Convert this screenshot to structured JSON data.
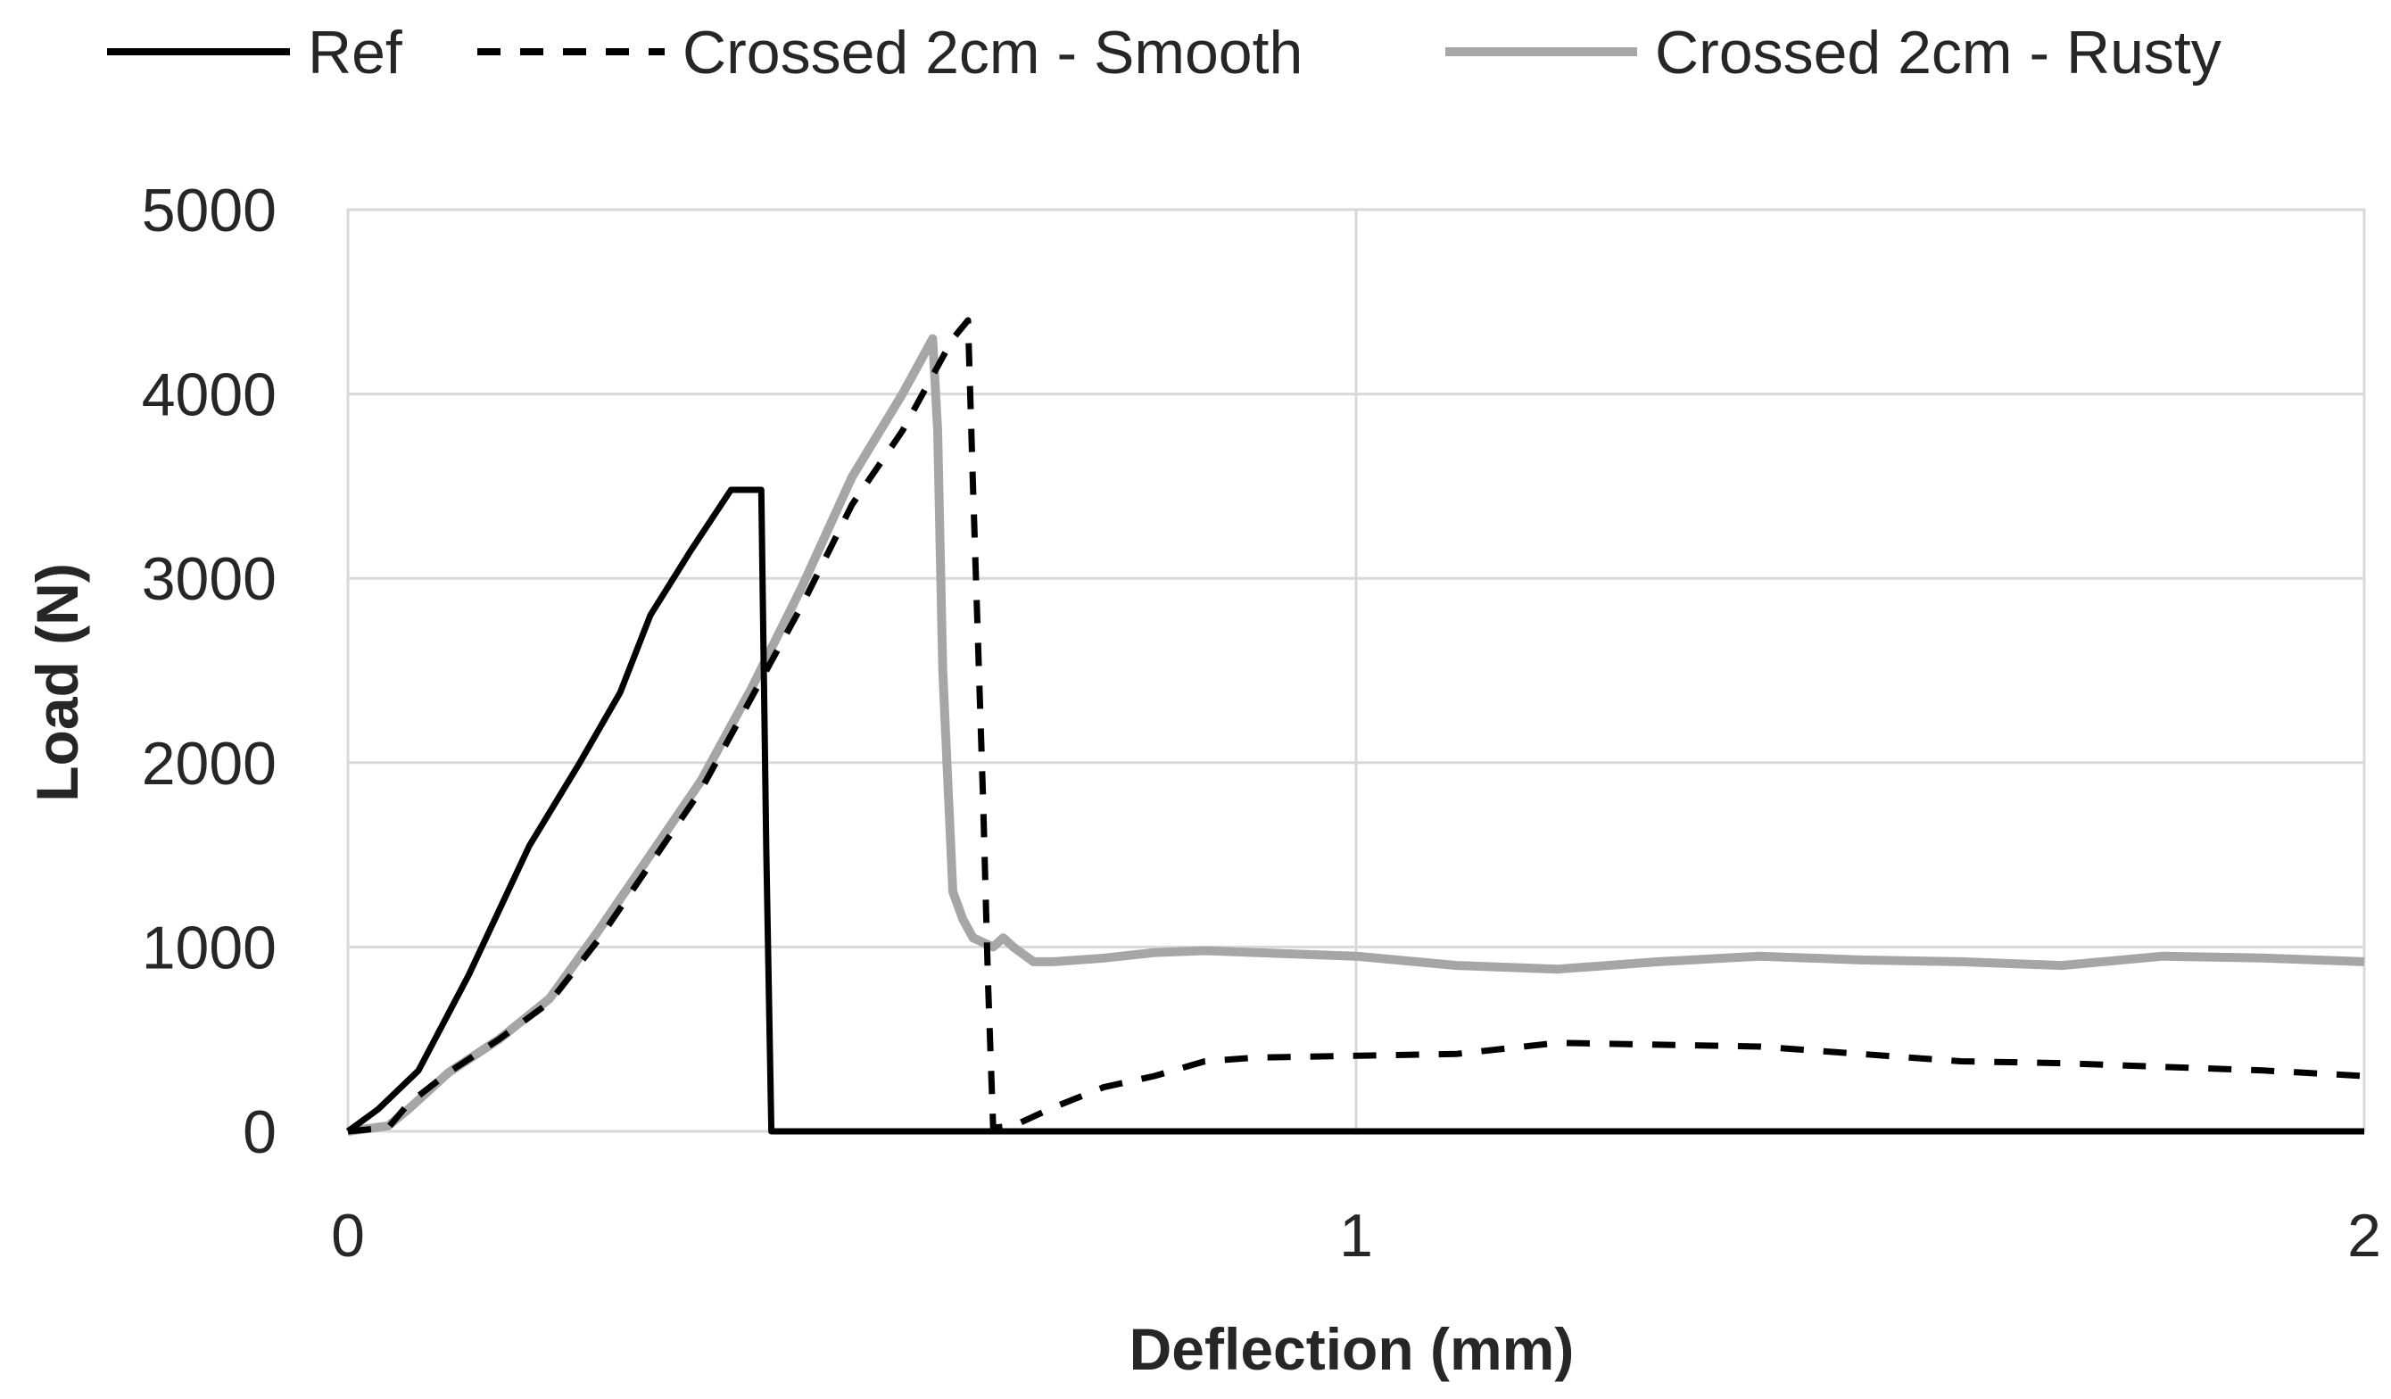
{
  "chart_data": {
    "type": "line",
    "title": "",
    "xlabel": "Deflection (mm)",
    "ylabel": "Load (N)",
    "xlim": [
      0,
      2
    ],
    "ylim": [
      0,
      5000
    ],
    "x_ticks": [
      "0",
      "1",
      "2"
    ],
    "y_ticks": [
      "0",
      "1000",
      "2000",
      "3000",
      "4000",
      "5000"
    ],
    "grid": true,
    "legend_position": "top",
    "series": [
      {
        "name": "Ref",
        "color": "#000000",
        "dash": "solid",
        "x": [
          0,
          0.03,
          0.07,
          0.12,
          0.18,
          0.23,
          0.27,
          0.3,
          0.34,
          0.38,
          0.41,
          0.415,
          0.42,
          2.0
        ],
        "y": [
          0,
          120,
          330,
          850,
          1550,
          2000,
          2380,
          2800,
          3150,
          3480,
          3480,
          1500,
          0,
          0
        ]
      },
      {
        "name": "Crossed 2cm - Smooth",
        "color": "#000000",
        "dash": "dashed",
        "x": [
          0,
          0.04,
          0.06,
          0.1,
          0.15,
          0.2,
          0.25,
          0.3,
          0.35,
          0.4,
          0.45,
          0.5,
          0.55,
          0.58,
          0.6,
          0.615,
          0.62,
          0.63,
          0.635,
          0.64,
          0.66,
          0.7,
          0.75,
          0.8,
          0.85,
          0.9,
          1.0,
          1.1,
          1.2,
          1.3,
          1.4,
          1.5,
          1.6,
          1.7,
          1.8,
          1.9,
          2.0
        ],
        "y": [
          0,
          20,
          150,
          320,
          500,
          700,
          1050,
          1450,
          1850,
          2350,
          2850,
          3400,
          3800,
          4100,
          4300,
          4400,
          3500,
          1800,
          800,
          20,
          30,
          130,
          240,
          300,
          380,
          400,
          410,
          420,
          480,
          470,
          460,
          420,
          380,
          370,
          350,
          330,
          300
        ]
      },
      {
        "name": "Crossed 2cm - Rusty",
        "color": "#a6a6a6",
        "dash": "solid",
        "x": [
          0,
          0.04,
          0.06,
          0.1,
          0.15,
          0.2,
          0.25,
          0.3,
          0.35,
          0.4,
          0.45,
          0.5,
          0.55,
          0.58,
          0.585,
          0.59,
          0.6,
          0.61,
          0.62,
          0.64,
          0.65,
          0.66,
          0.68,
          0.7,
          0.75,
          0.8,
          0.85,
          0.9,
          1.0,
          1.1,
          1.2,
          1.3,
          1.4,
          1.5,
          1.6,
          1.7,
          1.8,
          1.9,
          2.0
        ],
        "y": [
          0,
          30,
          120,
          320,
          500,
          720,
          1100,
          1500,
          1900,
          2400,
          2950,
          3550,
          4000,
          4300,
          3800,
          2500,
          1300,
          1150,
          1050,
          1000,
          1050,
          1000,
          920,
          920,
          940,
          970,
          980,
          970,
          950,
          900,
          880,
          920,
          950,
          930,
          920,
          900,
          950,
          940,
          920
        ]
      }
    ]
  }
}
